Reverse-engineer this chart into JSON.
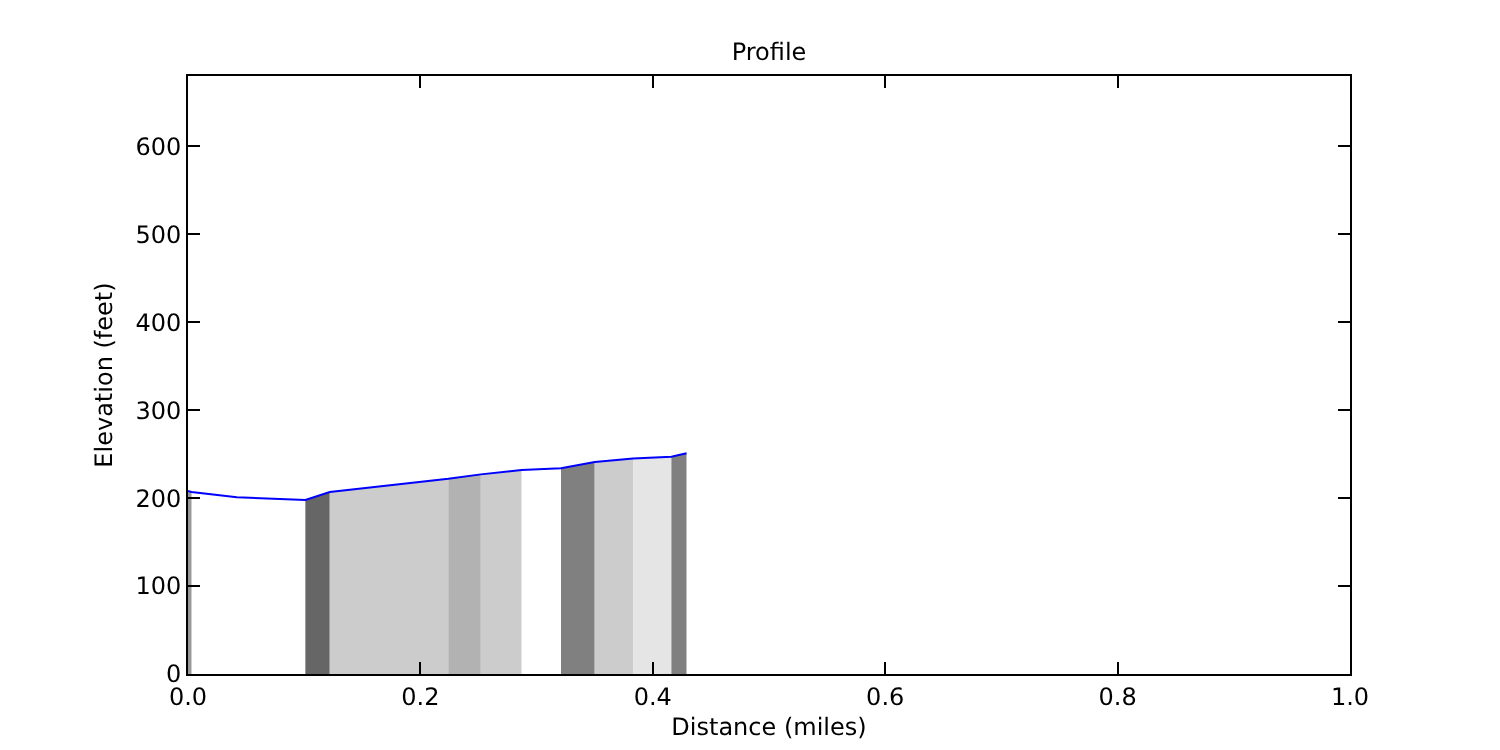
{
  "chart_data": {
    "type": "line",
    "title": "Profile",
    "xlabel": "Distance (miles)",
    "ylabel": "Elevation (feet)",
    "xlim": [
      0,
      1
    ],
    "ylim": [
      0,
      680
    ],
    "xticks": [
      {
        "value": 0,
        "label": "0.0"
      },
      {
        "value": 0.2,
        "label": "0.2"
      },
      {
        "value": 0.4,
        "label": "0.4"
      },
      {
        "value": 0.6,
        "label": "0.6"
      },
      {
        "value": 0.8,
        "label": "0.8"
      },
      {
        "value": 1,
        "label": "1.0"
      }
    ],
    "yticks": [
      0,
      100,
      200,
      300,
      400,
      500,
      600
    ],
    "grid": false,
    "marker": "none",
    "line_style": "solid",
    "series": [
      {
        "type": "area",
        "color": "#999999",
        "x": [
          0,
          0.003
        ],
        "values": [
          208,
          207
        ]
      },
      {
        "type": "area",
        "color": "#666666",
        "x": [
          0.101,
          0.122
        ],
        "values": [
          198,
          207
        ]
      },
      {
        "type": "area",
        "color": "#cccccc",
        "x": [
          0.122,
          0.224
        ],
        "values": [
          207,
          222
        ]
      },
      {
        "type": "area",
        "color": "#b2b2b2",
        "x": [
          0.224,
          0.252
        ],
        "values": [
          222,
          227
        ]
      },
      {
        "type": "area",
        "color": "#cccccc",
        "x": [
          0.252,
          0.287
        ],
        "values": [
          227,
          232
        ]
      },
      {
        "type": "area",
        "color": "#808080",
        "x": [
          0.321,
          0.35
        ],
        "values": [
          234,
          241
        ]
      },
      {
        "type": "area",
        "color": "#cccccc",
        "x": [
          0.35,
          0.383
        ],
        "values": [
          241,
          245
        ]
      },
      {
        "type": "area",
        "color": "#e5e5e5",
        "x": [
          0.383,
          0.416
        ],
        "values": [
          245,
          247
        ]
      },
      {
        "type": "area",
        "color": "#808080",
        "x": [
          0.416,
          0.429
        ],
        "values": [
          247,
          251
        ]
      },
      {
        "type": "line",
        "color": "#0000ff",
        "x": [
          0,
          0.003,
          0.042,
          0.101,
          0.122,
          0.224,
          0.252,
          0.287,
          0.321,
          0.35,
          0.383,
          0.416,
          0.429
        ],
        "values": [
          208,
          207,
          201,
          198,
          207,
          222,
          227,
          232,
          234,
          241,
          245,
          247,
          251
        ]
      }
    ]
  }
}
